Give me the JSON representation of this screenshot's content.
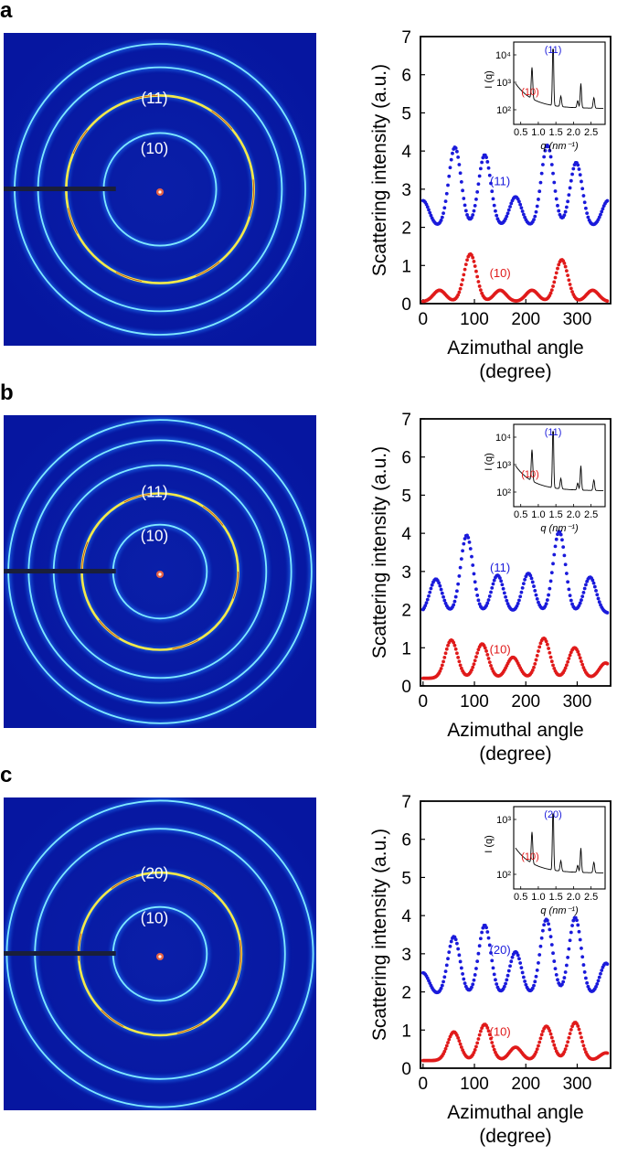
{
  "panels": [
    {
      "letter": "a",
      "pattern": {
        "inner_label": "(10)",
        "outer_label": "(11)",
        "rings": [
          0.36,
          0.6,
          0.78,
          0.93
        ]
      },
      "chart_data": {
        "type": "scatter",
        "xlabel": "Azimuthal angle\n(degree)",
        "ylabel": "Scattering intensity (a.u.)",
        "xlim": [
          -5,
          365
        ],
        "ylim": [
          0,
          7
        ],
        "xticks": [
          "0",
          "100",
          "200",
          "300"
        ],
        "yticks": [
          "0",
          "1",
          "2",
          "3",
          "4",
          "5",
          "6",
          "7"
        ],
        "series": [
          {
            "name": "(11)",
            "color": "#1a1adb",
            "baseline": 2.0,
            "peaks": [
              [
                62,
                4.1
              ],
              [
                120,
                3.9
              ],
              [
                180,
                2.8
              ],
              [
                242,
                4.15
              ],
              [
                298,
                3.7
              ],
              [
                360,
                2.7
              ],
              [
                0,
                2.7
              ]
            ]
          },
          {
            "name": "(10)",
            "color": "#e01a1a",
            "baseline": 0.05,
            "peaks": [
              [
                32,
                0.35
              ],
              [
                92,
                1.3
              ],
              [
                150,
                0.35
              ],
              [
                212,
                0.35
              ],
              [
                270,
                1.15
              ],
              [
                330,
                0.35
              ]
            ]
          }
        ],
        "inset": {
          "xlabel": "q (nm⁻¹)",
          "ylabel": "I (q)",
          "xticks": [
            "0.5",
            "1.0",
            "1.5",
            "2.0",
            "2.5"
          ],
          "yticks": [
            "10²",
            "10³",
            "10⁴"
          ],
          "peak_labels": [
            {
              "text": "(11)",
              "color": "#1a1adb"
            },
            {
              "text": "(10)",
              "color": "#e01a1a"
            }
          ]
        }
      }
    },
    {
      "letter": "b",
      "pattern": {
        "inner_label": "(10)",
        "outer_label": "(11)",
        "rings": [
          0.3,
          0.5,
          0.68,
          0.84,
          0.97
        ]
      },
      "chart_data": {
        "type": "scatter",
        "xlabel": "Azimuthal angle\n(degree)",
        "ylabel": "Scattering intensity (a.u.)",
        "xlim": [
          -5,
          365
        ],
        "ylim": [
          0,
          7
        ],
        "xticks": [
          "0",
          "100",
          "200",
          "300"
        ],
        "yticks": [
          "0",
          "1",
          "2",
          "3",
          "4",
          "5",
          "6",
          "7"
        ],
        "series": [
          {
            "name": "(11)",
            "color": "#1a1adb",
            "baseline": 1.9,
            "peaks": [
              [
                25,
                2.8
              ],
              [
                85,
                3.95
              ],
              [
                145,
                2.9
              ],
              [
                205,
                2.95
              ],
              [
                265,
                4.05
              ],
              [
                325,
                2.85
              ]
            ]
          },
          {
            "name": "(10)",
            "color": "#e01a1a",
            "baseline": 0.2,
            "peaks": [
              [
                55,
                1.2
              ],
              [
                115,
                1.1
              ],
              [
                175,
                0.75
              ],
              [
                235,
                1.25
              ],
              [
                295,
                1.0
              ],
              [
                355,
                0.6
              ]
            ]
          }
        ],
        "inset": {
          "xlabel": "q (nm⁻¹)",
          "ylabel": "I (q)",
          "xticks": [
            "0.5",
            "1.0",
            "1.5",
            "2.0",
            "2.5"
          ],
          "yticks": [
            "10²",
            "10³",
            "10⁴"
          ],
          "peak_labels": [
            {
              "text": "(11)",
              "color": "#1a1adb"
            },
            {
              "text": "(10)",
              "color": "#e01a1a"
            }
          ]
        }
      }
    },
    {
      "letter": "c",
      "pattern": {
        "inner_label": "(10)",
        "outer_label": "(20)",
        "rings": [
          0.3,
          0.52,
          0.8,
          0.98
        ]
      },
      "chart_data": {
        "type": "scatter",
        "xlabel": "Azimuthal angle\n(degree)",
        "ylabel": "Scattering intensity (a.u.)",
        "xlim": [
          -5,
          365
        ],
        "ylim": [
          0,
          7
        ],
        "xticks": [
          "0",
          "100",
          "200",
          "300"
        ],
        "yticks": [
          "0",
          "1",
          "2",
          "3",
          "4",
          "5",
          "6",
          "7"
        ],
        "series": [
          {
            "name": "(20)",
            "color": "#1a1adb",
            "baseline": 1.9,
            "peaks": [
              [
                0,
                2.5
              ],
              [
                60,
                3.45
              ],
              [
                120,
                3.75
              ],
              [
                180,
                3.05
              ],
              [
                240,
                3.9
              ],
              [
                296,
                3.95
              ],
              [
                356,
                2.75
              ]
            ]
          },
          {
            "name": "(10)",
            "color": "#e01a1a",
            "baseline": 0.2,
            "peaks": [
              [
                60,
                0.95
              ],
              [
                120,
                1.15
              ],
              [
                180,
                0.55
              ],
              [
                240,
                1.1
              ],
              [
                296,
                1.2
              ],
              [
                356,
                0.4
              ]
            ]
          }
        ],
        "inset": {
          "xlabel": "q (nm⁻¹)",
          "ylabel": "I (q)",
          "xticks": [
            "0.5",
            "1.0",
            "1.5",
            "2.0",
            "2.5"
          ],
          "yticks": [
            "10²",
            "10³"
          ],
          "peak_labels": [
            {
              "text": "(20)",
              "color": "#1a1adb"
            },
            {
              "text": "(10)",
              "color": "#e01a1a"
            }
          ]
        }
      }
    }
  ]
}
